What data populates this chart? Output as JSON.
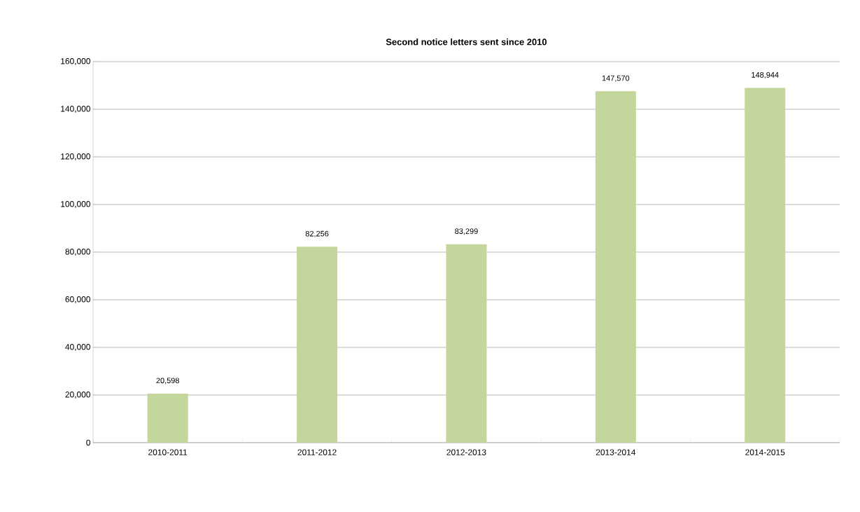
{
  "chart_data": {
    "type": "bar",
    "title": "Second notice letters sent since 2010",
    "categories": [
      "2010-2011",
      "2011-2012",
      "2012-2013",
      "2013-2014",
      "2014-2015"
    ],
    "values": [
      20598,
      82256,
      83299,
      147570,
      148944
    ],
    "value_labels": [
      "20,598",
      "82,256",
      "83,299",
      "147,570",
      "148,944"
    ],
    "color": "#c3d69b",
    "ylim": [
      0,
      160000
    ],
    "yticks": [
      {
        "value": 0,
        "label": "0"
      },
      {
        "value": 20000,
        "label": "20,000"
      },
      {
        "value": 40000,
        "label": "40,000"
      },
      {
        "value": 60000,
        "label": "60,000"
      },
      {
        "value": 80000,
        "label": "80,000"
      },
      {
        "value": 100000,
        "label": "100,000"
      },
      {
        "value": 120000,
        "label": "120,000"
      },
      {
        "value": 140000,
        "label": "140,000"
      },
      {
        "value": 160000,
        "label": "160,000"
      }
    ],
    "grid": "y"
  }
}
